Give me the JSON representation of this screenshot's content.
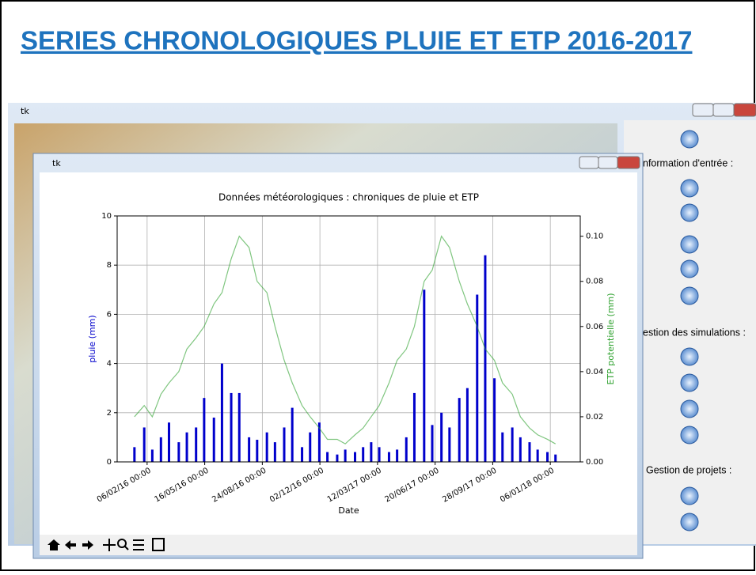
{
  "slide": {
    "title": "SERIES CHRONOLOGIQUES PLUIE ET ETP 2016-2017"
  },
  "background_window": {
    "title": "tk",
    "sections": [
      "nformation d'entrée :",
      "estion des simulations :",
      "Gestion de projets :"
    ]
  },
  "chart_window": {
    "title": "tk"
  },
  "chart_data": {
    "type": "bar-line",
    "title": "Données météorologiques : chroniques de pluie et ETP",
    "xlabel": "Date",
    "ylabel": "pluie (mm)",
    "y2label": "ETP potentielle (mm)",
    "x": [
      "2016-01-15",
      "2016-02-01",
      "2016-02-15",
      "2016-03-01",
      "2016-03-15",
      "2016-04-01",
      "2016-04-15",
      "2016-05-01",
      "2016-05-15",
      "2016-06-01",
      "2016-06-15",
      "2016-07-01",
      "2016-07-15",
      "2016-08-01",
      "2016-08-15",
      "2016-09-01",
      "2016-09-15",
      "2016-10-01",
      "2016-10-15",
      "2016-11-01",
      "2016-11-15",
      "2016-12-01",
      "2016-12-15",
      "2017-01-01",
      "2017-01-15",
      "2017-02-01",
      "2017-02-15",
      "2017-03-01",
      "2017-03-15",
      "2017-04-01",
      "2017-04-15",
      "2017-05-01",
      "2017-05-15",
      "2017-06-01",
      "2017-06-15",
      "2017-07-01",
      "2017-07-15",
      "2017-08-01",
      "2017-08-15",
      "2017-09-01",
      "2017-09-15",
      "2017-10-01",
      "2017-10-15",
      "2017-11-01",
      "2017-11-15",
      "2017-12-01",
      "2017-12-15",
      "2018-01-01",
      "2018-01-15"
    ],
    "series": [
      {
        "color": "#0000cc",
        "axis": "y",
        "values": [
          0.6,
          1.4,
          0.5,
          1.0,
          1.6,
          0.8,
          1.2,
          1.4,
          2.6,
          1.8,
          4.0,
          2.8,
          2.8,
          1.0,
          0.9,
          1.2,
          0.8,
          1.4,
          2.2,
          0.6,
          1.2,
          1.6,
          0.4,
          0.3,
          0.5,
          0.4,
          0.6,
          0.8,
          0.6,
          0.4,
          0.5,
          1.0,
          2.8,
          7.0,
          1.5,
          2.0,
          1.4,
          2.6,
          3.0,
          6.8,
          8.4,
          3.4,
          1.2,
          1.4,
          1.0,
          0.8,
          0.5,
          0.4,
          0.3
        ]
      },
      {
        "color": "#2ca02c",
        "axis": "y2",
        "values": [
          0.02,
          0.025,
          0.02,
          0.03,
          0.035,
          0.04,
          0.05,
          0.055,
          0.06,
          0.07,
          0.075,
          0.09,
          0.1,
          0.095,
          0.08,
          0.075,
          0.06,
          0.045,
          0.035,
          0.025,
          0.02,
          0.015,
          0.01,
          0.01,
          0.008,
          0.012,
          0.015,
          0.02,
          0.025,
          0.035,
          0.045,
          0.05,
          0.06,
          0.08,
          0.085,
          0.1,
          0.095,
          0.08,
          0.07,
          0.06,
          0.05,
          0.045,
          0.035,
          0.03,
          0.02,
          0.015,
          0.012,
          0.01,
          0.008
        ]
      }
    ],
    "xlim": [
      "2015-12-16",
      "2018-02-27"
    ],
    "xticks": [
      {
        "value": "2016-02-06",
        "label": "06/02/16 00:00"
      },
      {
        "value": "2016-05-16",
        "label": "16/05/16 00:00"
      },
      {
        "value": "2016-08-24",
        "label": "24/08/16 00:00"
      },
      {
        "value": "2016-12-02",
        "label": "02/12/16 00:00"
      },
      {
        "value": "2017-03-12",
        "label": "12/03/17 00:00"
      },
      {
        "value": "2017-06-20",
        "label": "20/06/17 00:00"
      },
      {
        "value": "2017-09-28",
        "label": "28/09/17 00:00"
      },
      {
        "value": "2018-01-06",
        "label": "06/01/18 00:00"
      }
    ],
    "ylim": [
      0,
      10
    ],
    "yticks": [
      0,
      2,
      4,
      6,
      8,
      10
    ],
    "y2lim": [
      0,
      0.109
    ],
    "y2ticks": [
      {
        "value": 0,
        "label": "0.00"
      },
      0.02,
      0.04,
      0.06,
      0.08,
      {
        "value": 0.1,
        "label": "0.10"
      }
    ],
    "grid": true
  }
}
